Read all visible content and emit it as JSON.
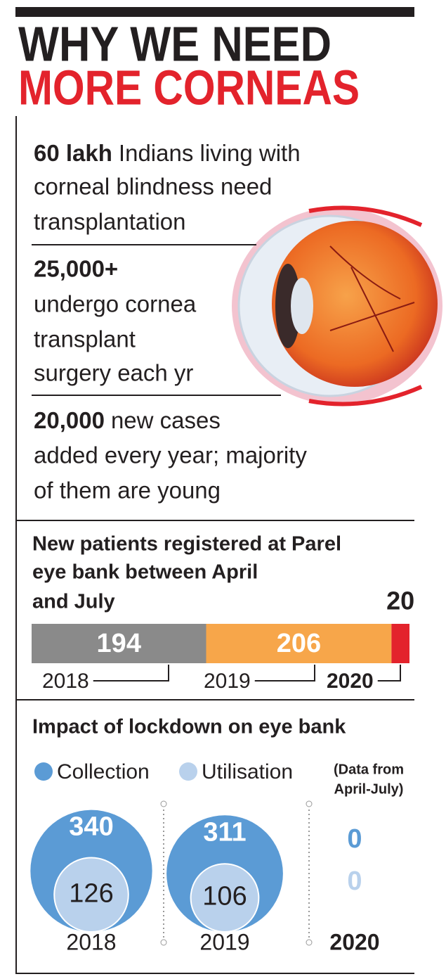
{
  "header": {
    "title_line1": "WHY WE NEED",
    "title_line2": "MORE CORNEAS"
  },
  "facts": [
    {
      "highlight": "60 lakh",
      "lines": [
        "Indians living with",
        "corneal blindness need",
        "transplantation"
      ]
    },
    {
      "highlight": "25,000+",
      "lines": [
        "undergo cornea",
        "transplant",
        "surgery each yr"
      ]
    },
    {
      "highlight": "20,000",
      "lines": [
        "new cases",
        "added every year; majority",
        "of them are young"
      ]
    }
  ],
  "chart_data": [
    {
      "type": "stacked-bar",
      "title": [
        "New patients registered at Parel",
        "eye bank between April",
        "and July"
      ],
      "categories": [
        "2018",
        "2019",
        "2020"
      ],
      "values": [
        194,
        206,
        20
      ],
      "colors": [
        "#8a8a8a",
        "#f7a64a",
        "#e3232c"
      ]
    },
    {
      "type": "bubble",
      "title": "Impact of lockdown on eye bank",
      "note": [
        "(Data from",
        "April-July)"
      ],
      "categories": [
        "2018",
        "2019",
        "2020"
      ],
      "series": [
        {
          "name": "Collection",
          "color": "#5b9bd5",
          "values": [
            340,
            311,
            0
          ]
        },
        {
          "name": "Utilisation",
          "color": "#b9d1ec",
          "values": [
            126,
            106,
            0
          ]
        }
      ]
    }
  ]
}
